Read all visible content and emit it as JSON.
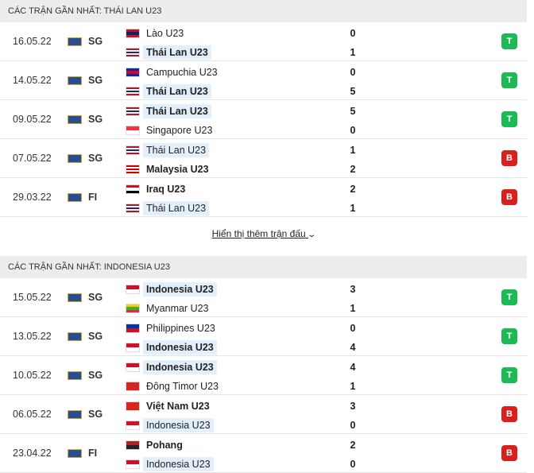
{
  "sections": [
    {
      "title": "CÁC TRẬN GẦN NHẤT: THÁI LAN U23",
      "matches": [
        {
          "date": "16.05.22",
          "league": "SG",
          "highlight": "away",
          "home": {
            "name": "Lào U23",
            "score": 0,
            "flag": [
              "#ce1126",
              "#002868",
              "#ce1126"
            ]
          },
          "away": {
            "name": "Thái Lan U23",
            "score": 1,
            "flag": [
              "#a51931",
              "#f4f5f8",
              "#2d2a4a",
              "#f4f5f8",
              "#a51931"
            ]
          },
          "result": {
            "label": "T",
            "color": "#1db954"
          }
        },
        {
          "date": "14.05.22",
          "league": "SG",
          "highlight": "away",
          "home": {
            "name": "Campuchia U23",
            "score": 0,
            "flag": [
              "#032ea1",
              "#e00025",
              "#032ea1"
            ]
          },
          "away": {
            "name": "Thái Lan U23",
            "score": 5,
            "flag": [
              "#a51931",
              "#f4f5f8",
              "#2d2a4a",
              "#f4f5f8",
              "#a51931"
            ]
          },
          "result": {
            "label": "T",
            "color": "#1db954"
          }
        },
        {
          "date": "09.05.22",
          "league": "SG",
          "highlight": "home",
          "home": {
            "name": "Thái Lan U23",
            "score": 5,
            "flag": [
              "#a51931",
              "#f4f5f8",
              "#2d2a4a",
              "#f4f5f8",
              "#a51931"
            ]
          },
          "away": {
            "name": "Singapore U23",
            "score": 0,
            "flag": [
              "#ef3340",
              "#ffffff"
            ]
          },
          "result": {
            "label": "T",
            "color": "#1db954"
          }
        },
        {
          "date": "07.05.22",
          "league": "SG",
          "highlight": "home",
          "home": {
            "name": "Thái Lan U23",
            "score": 1,
            "flag": [
              "#a51931",
              "#f4f5f8",
              "#2d2a4a",
              "#f4f5f8",
              "#a51931"
            ]
          },
          "away": {
            "name": "Malaysia U23",
            "score": 2,
            "flag": [
              "#cc0001",
              "#ffffff",
              "#cc0001",
              "#ffffff",
              "#cc0001"
            ]
          },
          "result": {
            "label": "B",
            "color": "#d9201c"
          }
        },
        {
          "date": "29.03.22",
          "league": "FI",
          "highlight": "away",
          "home": {
            "name": "Iraq U23",
            "score": 2,
            "flag": [
              "#ce1126",
              "#ffffff",
              "#000000"
            ]
          },
          "away": {
            "name": "Thái Lan U23",
            "score": 1,
            "flag": [
              "#a51931",
              "#f4f5f8",
              "#2d2a4a",
              "#f4f5f8",
              "#a51931"
            ]
          },
          "result": {
            "label": "B",
            "color": "#d9201c"
          }
        }
      ]
    },
    {
      "title": "CÁC TRẬN GẦN NHẤT: INDONESIA U23",
      "matches": [
        {
          "date": "15.05.22",
          "league": "SG",
          "highlight": "home",
          "home": {
            "name": "Indonesia U23",
            "score": 3,
            "flag": [
              "#ce1126",
              "#ffffff"
            ]
          },
          "away": {
            "name": "Myanmar U23",
            "score": 1,
            "flag": [
              "#fecb00",
              "#34b233",
              "#ea2839"
            ]
          },
          "result": {
            "label": "T",
            "color": "#1db954"
          }
        },
        {
          "date": "13.05.22",
          "league": "SG",
          "highlight": "away",
          "home": {
            "name": "Philippines U23",
            "score": 0,
            "flag": [
              "#0038a8",
              "#ce1126"
            ]
          },
          "away": {
            "name": "Indonesia U23",
            "score": 4,
            "flag": [
              "#ce1126",
              "#ffffff"
            ]
          },
          "result": {
            "label": "T",
            "color": "#1db954"
          }
        },
        {
          "date": "10.05.22",
          "league": "SG",
          "highlight": "home",
          "home": {
            "name": "Indonesia U23",
            "score": 4,
            "flag": [
              "#ce1126",
              "#ffffff"
            ]
          },
          "away": {
            "name": "Đông Timor U23",
            "score": 1,
            "flag": [
              "#dc241f",
              "#dc241f"
            ]
          },
          "result": {
            "label": "T",
            "color": "#1db954"
          }
        },
        {
          "date": "06.05.22",
          "league": "SG",
          "highlight": "away",
          "home": {
            "name": "Việt Nam U23",
            "score": 3,
            "flag": [
              "#da251d",
              "#da251d"
            ]
          },
          "away": {
            "name": "Indonesia U23",
            "score": 0,
            "flag": [
              "#ce1126",
              "#ffffff"
            ]
          },
          "result": {
            "label": "B",
            "color": "#d9201c"
          }
        },
        {
          "date": "23.04.22",
          "league": "FI",
          "highlight": "away",
          "home": {
            "name": "Pohang",
            "score": 2,
            "flag": [
              "#b22222",
              "#222222"
            ]
          },
          "away": {
            "name": "Indonesia U23",
            "score": 0,
            "flag": [
              "#ce1126",
              "#ffffff"
            ]
          },
          "result": {
            "label": "B",
            "color": "#d9201c"
          }
        }
      ]
    }
  ],
  "show_more": "Hiển thị thêm trận đấu"
}
